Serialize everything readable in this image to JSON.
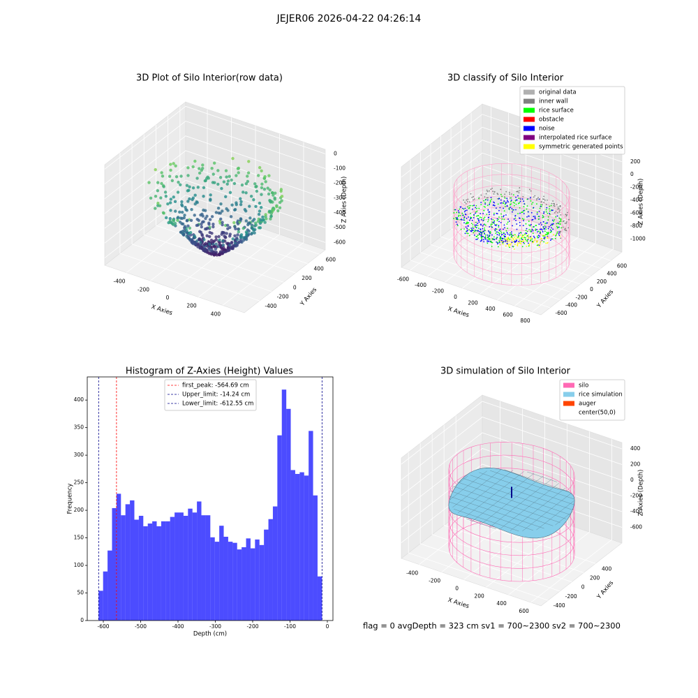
{
  "title": "JEJER06 2026-04-22 04:26:14",
  "footer": "flag = 0     avgDepth = 323 cm  sv1 = 700~2300  sv2 = 700~2300",
  "chart_data": [
    {
      "type": "scatter3d",
      "title": "3D Plot of Silo Interior(row data)",
      "xlabel": "X Axies",
      "ylabel": "Y Axies",
      "zlabel": "Z Axies (Depth)",
      "xlim": [
        -580,
        580
      ],
      "ylim": [
        -655,
        695
      ],
      "zlim": [
        -650,
        30
      ],
      "xticks": [
        -400,
        -200,
        0,
        200,
        400
      ],
      "yticks": [
        -400,
        -200,
        0,
        200,
        400,
        600
      ],
      "zticks": [
        0,
        -100,
        -200,
        -300,
        -400,
        -500,
        -600
      ]
    },
    {
      "type": "scatter3d",
      "title": "3D classify of Silo Interior",
      "xlabel": "X Axies",
      "ylabel": "Y Axies",
      "zlabel": "Z Axies (Depth)",
      "xlim": [
        -700,
        900
      ],
      "ylim": [
        -780,
        820
      ],
      "zlim": [
        -1200,
        360
      ],
      "xticks": [
        -600,
        -400,
        -200,
        0,
        200,
        400,
        600,
        800
      ],
      "yticks": [
        -600,
        -400,
        -200,
        0,
        200,
        400,
        600
      ],
      "zticks": [
        200,
        0,
        -200,
        -400,
        -600,
        -800,
        -1000
      ],
      "series": [
        {
          "name": "original data",
          "color": "#b0b0b0"
        },
        {
          "name": "inner wall",
          "color": "#808080"
        },
        {
          "name": "rice surface",
          "color": "#00ff00"
        },
        {
          "name": "obstacle",
          "color": "#ff0000"
        },
        {
          "name": "noise",
          "color": "#0000ff"
        },
        {
          "name": "interpolated rice surface",
          "color": "#800080"
        },
        {
          "name": "symmetric generated points",
          "color": "#ffff00"
        }
      ]
    },
    {
      "type": "histogram",
      "title": "Histogram of Z-Axies (Height) Values",
      "xlabel": "Depth (cm)",
      "ylabel": "Frequency",
      "color": "#0000ff",
      "bins": [
        -612.55,
        -600.58,
        -588.62,
        -576.65,
        -564.69,
        -552.72,
        -540.75,
        -528.79,
        -516.82,
        -504.86,
        -492.89,
        -480.92,
        -468.96,
        -456.99,
        -445.02,
        -433.06,
        -421.09,
        -409.13,
        -397.16,
        -385.19,
        -373.23,
        -361.26,
        -349.29,
        -337.33,
        -325.36,
        -313.4,
        -301.43,
        -289.46,
        -277.5,
        -265.53,
        -253.56,
        -241.6,
        -229.63,
        -217.67,
        -205.7,
        -193.73,
        -181.77,
        -169.8,
        -157.84,
        -145.87,
        -133.9,
        -121.94,
        -109.97,
        -98.0,
        -86.04,
        -74.07,
        -62.11,
        -50.14,
        -38.17,
        -26.21,
        -14.24
      ],
      "values": [
        54,
        89,
        127,
        204,
        230,
        191,
        211,
        218,
        183,
        190,
        171,
        176,
        180,
        171,
        180,
        180,
        188,
        196,
        196,
        190,
        203,
        196,
        216,
        191,
        191,
        151,
        143,
        172,
        152,
        143,
        141,
        129,
        133,
        149,
        131,
        147,
        137,
        165,
        184,
        207,
        336,
        419,
        384,
        273,
        266,
        269,
        263,
        344,
        227,
        80
      ],
      "xlim": [
        -643,
        15
      ],
      "ylim": [
        0,
        442
      ],
      "xticks": [
        -600,
        -500,
        -400,
        -300,
        -200,
        -100,
        0
      ],
      "yticks": [
        0,
        50,
        100,
        150,
        200,
        250,
        300,
        350,
        400
      ],
      "vlines": [
        {
          "name": "first_peak: -564.69 cm",
          "value": -564.69,
          "color": "#ff0000"
        },
        {
          "name": "Upper_limit: -14.24 cm",
          "value": -14.24,
          "color": "#00008b"
        },
        {
          "name": "Lower_limit: -612.55 cm",
          "value": -612.55,
          "color": "#00008b"
        }
      ]
    },
    {
      "type": "surface3d",
      "title": "3D simulation of Silo Interior",
      "xlabel": "X Axies",
      "ylabel": "Y Axies",
      "zlabel": "Z Axies (Depth)",
      "xlim": [
        -560,
        690
      ],
      "ylim": [
        -520,
        845
      ],
      "zlim": [
        -800,
        480
      ],
      "xticks": [
        -400,
        -200,
        0,
        200,
        400,
        600
      ],
      "yticks": [
        -400,
        -200,
        0,
        200,
        400
      ],
      "zticks": [
        400,
        200,
        0,
        -200,
        -400,
        -600
      ],
      "series": [
        {
          "name": "silo",
          "color": "#ff69b4"
        },
        {
          "name": "rice simulation",
          "color": "#87ceeb"
        },
        {
          "name": "auger",
          "color": "#ff4500"
        },
        {
          "name": "center(50,0)",
          "color": "#ffffff"
        }
      ]
    }
  ]
}
